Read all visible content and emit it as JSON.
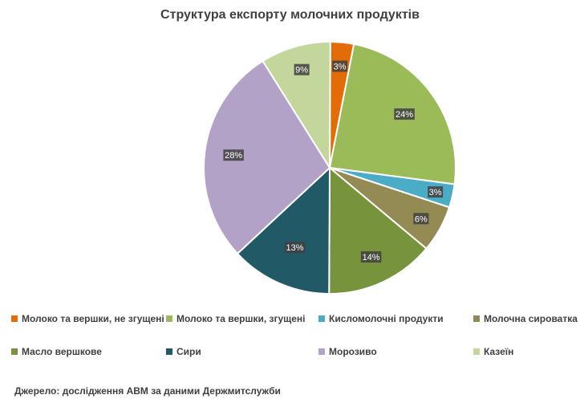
{
  "chart_data": {
    "type": "pie",
    "title": "Структура експорту молочних продуктів",
    "slices": [
      {
        "label": "Молоко та вершки, не згущені",
        "value": 3,
        "display": "3%",
        "color": "#E36C09"
      },
      {
        "label": "Молоко та вершки, згущені",
        "value": 24,
        "display": "24%",
        "color": "#9BBB59"
      },
      {
        "label": "Кисломолочні продукти",
        "value": 3,
        "display": "3%",
        "color": "#4BACC6"
      },
      {
        "label": "Молочна сироватка",
        "value": 6,
        "display": "6%",
        "color": "#948A54"
      },
      {
        "label": "Масло вершкове",
        "value": 14,
        "display": "14%",
        "color": "#77933C"
      },
      {
        "label": "Сири",
        "value": 13,
        "display": "13%",
        "color": "#215967"
      },
      {
        "label": "Морозиво",
        "value": 28,
        "display": "28%",
        "color": "#B3A2C7"
      },
      {
        "label": "Казеїн",
        "value": 9,
        "display": "9%",
        "color": "#C3D69B"
      }
    ],
    "legend_position": "bottom",
    "data_label_style": "dark boxed percentages"
  },
  "source": "Джерело: дослідження АВМ за даними Держмитслужби"
}
